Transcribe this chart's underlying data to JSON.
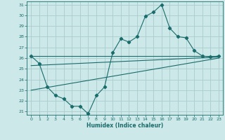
{
  "background_color": "#cce8e8",
  "grid_color": "#aacccc",
  "line_color": "#1a6b6b",
  "xlabel": "Humidex (Indice chaleur)",
  "xlim": [
    -0.5,
    23.5
  ],
  "ylim": [
    20.7,
    31.3
  ],
  "yticks": [
    21,
    22,
    23,
    24,
    25,
    26,
    27,
    28,
    29,
    30,
    31
  ],
  "xticks": [
    0,
    1,
    2,
    3,
    4,
    5,
    6,
    7,
    8,
    9,
    10,
    11,
    12,
    13,
    14,
    15,
    16,
    17,
    18,
    19,
    20,
    21,
    22,
    23
  ],
  "jagged_x": [
    0,
    1,
    2,
    3,
    4,
    5,
    6,
    7,
    8,
    9,
    10,
    11,
    12,
    13,
    14,
    15,
    16,
    17,
    18,
    19,
    20,
    21,
    22,
    23
  ],
  "jagged_y": [
    26.2,
    25.5,
    23.3,
    22.5,
    22.2,
    21.5,
    21.5,
    20.8,
    22.5,
    23.3,
    26.5,
    27.8,
    27.5,
    28.0,
    29.9,
    30.3,
    31.0,
    28.8,
    28.0,
    27.9,
    26.7,
    26.2,
    26.1,
    26.2
  ],
  "line1_x": [
    0,
    23
  ],
  "line1_y": [
    26.2,
    26.2
  ],
  "line2_x": [
    0,
    23
  ],
  "line2_y": [
    25.3,
    26.1
  ],
  "line3_x": [
    0,
    23
  ],
  "line3_y": [
    23.0,
    26.0
  ]
}
